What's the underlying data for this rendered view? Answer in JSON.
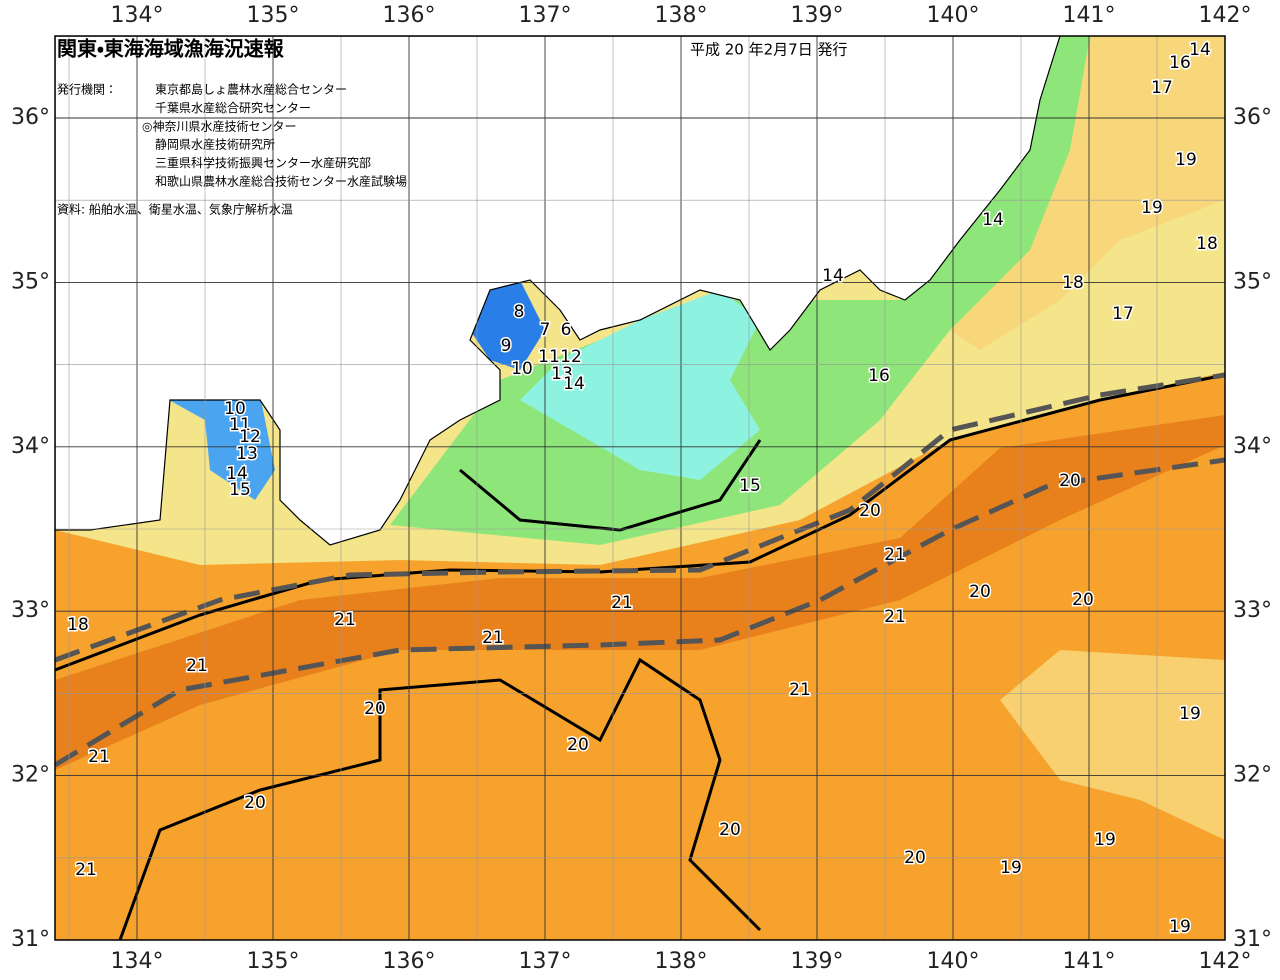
{
  "header": {
    "title": "関東・東海海域漁海況速報",
    "date": "平成 20 年2月7日 発行",
    "issuer_label": "発行機関：",
    "issuers": [
      "東京都島しょ農林水産総合センター",
      "千葉県水産総合研究センター",
      "◎神奈川県水産技術センター",
      "静岡県水産技術研究所",
      "三重県科学技術振興センター水産研究部",
      "和歌山県農林水産総合技術センター水産試験場"
    ],
    "source": "資料: 船舶水温、衛星水温、気象庁解析水温"
  },
  "axes": {
    "longitudes": [
      "134°",
      "135°",
      "136°",
      "137°",
      "138°",
      "139°",
      "140°",
      "141°",
      "142°"
    ],
    "latitudes": [
      "36°",
      "35°",
      "34°",
      "33°",
      "32°",
      "31°"
    ]
  },
  "contour_labels": [
    14,
    16,
    17,
    19,
    19,
    18,
    18,
    17,
    14,
    14,
    16,
    8,
    7,
    6,
    9,
    11,
    12,
    10,
    13,
    14,
    10,
    11,
    12,
    13,
    14,
    15,
    15,
    20,
    20,
    21,
    21,
    20,
    20,
    21,
    21,
    18,
    21,
    21,
    21,
    20,
    19,
    20,
    21,
    20,
    20,
    19,
    20,
    19,
    21,
    19
  ]
}
